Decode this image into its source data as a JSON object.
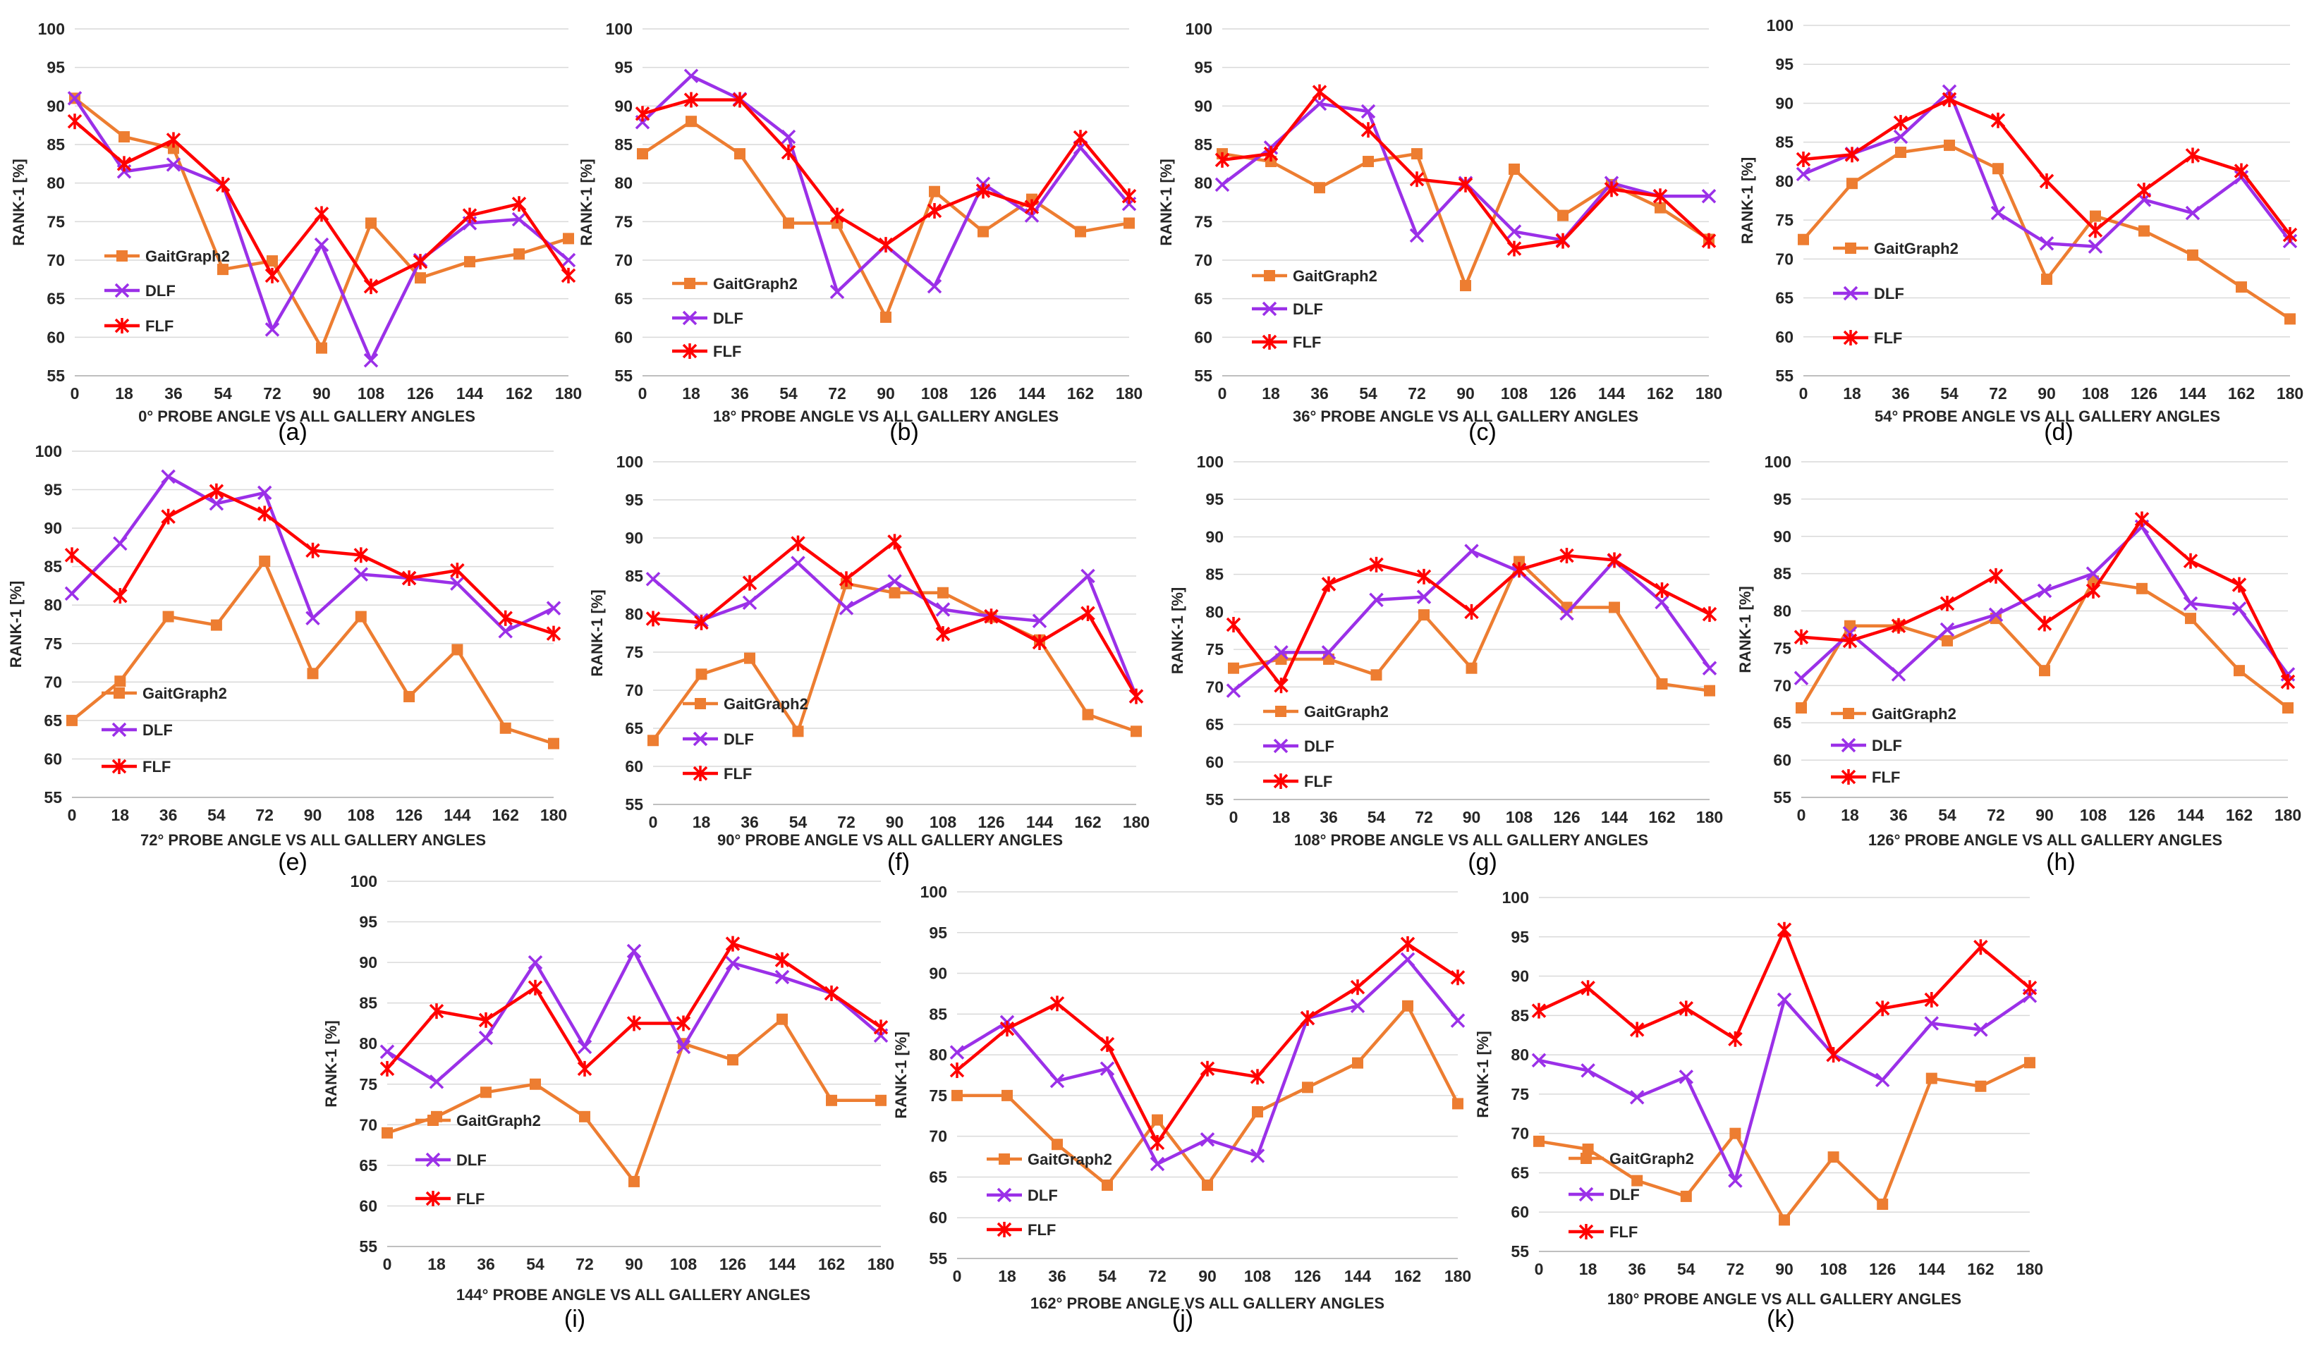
{
  "colors": {
    "GaitGraph2": "#ED7D31",
    "DLF": "#9B30E8",
    "FLF": "#FF0000"
  },
  "chart_data": [
    {
      "type": "line",
      "panel_label": "(a)",
      "title": "",
      "xlabel": "0° PROBE ANGLE VS ALL GALLERY ANGLES",
      "ylabel": "RANK-1 [%]",
      "ylim": [
        55,
        100
      ],
      "yticks": [
        "55",
        "60",
        "65",
        "70",
        "75",
        "80",
        "85",
        "90",
        "95",
        "100"
      ],
      "categories": [
        "0",
        "18",
        "36",
        "54",
        "72",
        "90",
        "108",
        "126",
        "144",
        "162",
        "180"
      ],
      "series": [
        {
          "name": "GaitGraph2",
          "marker": "square",
          "values": [
            91.0,
            86.0,
            84.5,
            68.8,
            69.9,
            58.6,
            74.8,
            67.7,
            69.8,
            70.8,
            72.8
          ]
        },
        {
          "name": "DLF",
          "marker": "x",
          "values": [
            91.0,
            81.5,
            82.4,
            79.8,
            61.0,
            72.0,
            57.0,
            70.0,
            74.8,
            75.3,
            70.0
          ]
        },
        {
          "name": "FLF",
          "marker": "star",
          "values": [
            88.0,
            82.5,
            85.6,
            79.8,
            68.0,
            76.0,
            66.6,
            69.8,
            75.8,
            77.3,
            68.0
          ]
        }
      ]
    },
    {
      "type": "line",
      "panel_label": "(b)",
      "title": "",
      "xlabel": "18° PROBE ANGLE VS ALL GALLERY ANGLES",
      "ylabel": "RANK-1 [%]",
      "ylim": [
        55,
        100
      ],
      "yticks": [
        "55",
        "60",
        "65",
        "70",
        "75",
        "80",
        "85",
        "90",
        "95",
        "100"
      ],
      "categories": [
        "0",
        "18",
        "36",
        "54",
        "72",
        "90",
        "108",
        "126",
        "144",
        "162",
        "180"
      ],
      "series": [
        {
          "name": "GaitGraph2",
          "marker": "square",
          "values": [
            83.8,
            88.0,
            83.8,
            74.8,
            74.8,
            62.6,
            78.9,
            73.7,
            77.9,
            73.7,
            74.8
          ]
        },
        {
          "name": "DLF",
          "marker": "x",
          "values": [
            87.9,
            93.9,
            90.9,
            86.0,
            65.9,
            71.9,
            66.6,
            79.9,
            75.8,
            84.6,
            77.3
          ]
        },
        {
          "name": "FLF",
          "marker": "star",
          "values": [
            89.0,
            90.8,
            90.8,
            84.0,
            75.8,
            72.0,
            76.4,
            79.0,
            76.9,
            85.9,
            78.3
          ]
        }
      ]
    },
    {
      "type": "line",
      "panel_label": "(c)",
      "title": "",
      "xlabel": "36° PROBE ANGLE VS ALL GALLERY ANGLES",
      "ylabel": "RANK-1 [%]",
      "ylim": [
        55,
        100
      ],
      "yticks": [
        "55",
        "60",
        "65",
        "70",
        "75",
        "80",
        "85",
        "90",
        "95",
        "100"
      ],
      "categories": [
        "0",
        "18",
        "36",
        "54",
        "72",
        "90",
        "108",
        "126",
        "144",
        "162",
        "180"
      ],
      "series": [
        {
          "name": "GaitGraph2",
          "marker": "square",
          "values": [
            83.8,
            82.8,
            79.4,
            82.8,
            83.8,
            66.7,
            81.8,
            75.8,
            79.8,
            76.8,
            72.7
          ]
        },
        {
          "name": "DLF",
          "marker": "x",
          "values": [
            79.8,
            84.6,
            90.3,
            89.3,
            73.2,
            80.0,
            73.7,
            72.6,
            80.0,
            78.3,
            78.3
          ]
        },
        {
          "name": "FLF",
          "marker": "star",
          "values": [
            83.0,
            83.8,
            91.8,
            86.9,
            80.5,
            79.8,
            71.5,
            72.5,
            79.2,
            78.3,
            72.5
          ]
        }
      ]
    },
    {
      "type": "line",
      "panel_label": "(d)",
      "title": "",
      "xlabel": "54° PROBE ANGLE VS ALL GALLERY ANGLES",
      "ylabel": "RANK-1 [%]",
      "ylim": [
        55,
        100
      ],
      "yticks": [
        "55",
        "60",
        "65",
        "70",
        "75",
        "80",
        "85",
        "90",
        "95",
        "100"
      ],
      "categories": [
        "0",
        "18",
        "36",
        "54",
        "72",
        "90",
        "108",
        "126",
        "144",
        "162",
        "180"
      ],
      "series": [
        {
          "name": "GaitGraph2",
          "marker": "square",
          "values": [
            72.5,
            79.7,
            83.7,
            84.6,
            81.6,
            67.4,
            75.5,
            73.6,
            70.5,
            66.4,
            62.3
          ]
        },
        {
          "name": "DLF",
          "marker": "x",
          "values": [
            80.9,
            83.5,
            85.7,
            91.5,
            75.9,
            72.0,
            71.6,
            77.6,
            75.9,
            80.5,
            72.3
          ]
        },
        {
          "name": "FLF",
          "marker": "star",
          "values": [
            82.8,
            83.4,
            87.5,
            90.5,
            87.8,
            80.0,
            73.7,
            78.8,
            83.3,
            81.3,
            73.1
          ]
        }
      ]
    },
    {
      "type": "line",
      "panel_label": "(e)",
      "title": "",
      "xlabel": "72° PROBE ANGLE VS ALL GALLERY ANGLES",
      "ylabel": "RANK-1 [%]",
      "ylim": [
        55,
        100
      ],
      "yticks": [
        "55",
        "60",
        "65",
        "70",
        "75",
        "80",
        "85",
        "90",
        "95",
        "100"
      ],
      "categories": [
        "0",
        "18",
        "36",
        "54",
        "72",
        "90",
        "108",
        "126",
        "144",
        "162",
        "180"
      ],
      "series": [
        {
          "name": "GaitGraph2",
          "marker": "square",
          "values": [
            65.0,
            70.1,
            78.5,
            77.4,
            85.7,
            71.1,
            78.5,
            68.1,
            74.2,
            64.0,
            62.0
          ]
        },
        {
          "name": "DLF",
          "marker": "x",
          "values": [
            81.5,
            88.0,
            96.7,
            93.2,
            94.6,
            78.3,
            84.0,
            83.5,
            82.8,
            76.6,
            79.6
          ]
        },
        {
          "name": "FLF",
          "marker": "star",
          "values": [
            86.5,
            81.2,
            91.5,
            94.8,
            91.9,
            87.1,
            86.5,
            83.5,
            84.5,
            78.3,
            76.3
          ]
        }
      ]
    },
    {
      "type": "line",
      "panel_label": "(f)",
      "title": "",
      "xlabel": "90° PROBE ANGLE VS ALL GALLERY ANGLES",
      "ylabel": "RANK-1 [%]",
      "ylim": [
        55,
        100
      ],
      "yticks": [
        "55",
        "60",
        "65",
        "70",
        "75",
        "80",
        "85",
        "90",
        "95",
        "100"
      ],
      "categories": [
        "0",
        "18",
        "36",
        "54",
        "72",
        "90",
        "108",
        "126",
        "144",
        "162",
        "180"
      ],
      "series": [
        {
          "name": "GaitGraph2",
          "marker": "square",
          "values": [
            63.4,
            72.1,
            74.2,
            64.6,
            84.0,
            82.8,
            82.8,
            79.6,
            76.6,
            66.8,
            64.6
          ]
        },
        {
          "name": "DLF",
          "marker": "x",
          "values": [
            84.6,
            79.2,
            81.5,
            86.7,
            80.8,
            84.3,
            80.6,
            79.7,
            79.1,
            85.0,
            69.2
          ]
        },
        {
          "name": "FLF",
          "marker": "star",
          "values": [
            79.4,
            78.9,
            84.1,
            89.3,
            84.6,
            89.5,
            77.4,
            79.7,
            76.3,
            80.1,
            69.2
          ]
        }
      ]
    },
    {
      "type": "line",
      "panel_label": "(g)",
      "title": "",
      "xlabel": "108° PROBE ANGLE VS ALL GALLERY ANGLES",
      "ylabel": "RANK-1 [%]",
      "ylim": [
        55,
        100
      ],
      "yticks": [
        "55",
        "60",
        "65",
        "70",
        "75",
        "80",
        "85",
        "90",
        "95",
        "100"
      ],
      "categories": [
        "0",
        "18",
        "36",
        "54",
        "72",
        "90",
        "108",
        "126",
        "144",
        "162",
        "180"
      ],
      "series": [
        {
          "name": "GaitGraph2",
          "marker": "square",
          "values": [
            72.5,
            73.7,
            73.7,
            71.6,
            79.6,
            72.5,
            86.7,
            80.6,
            80.6,
            70.4,
            69.5
          ]
        },
        {
          "name": "DLF",
          "marker": "x",
          "values": [
            69.5,
            74.6,
            74.6,
            81.6,
            82.0,
            88.1,
            85.4,
            79.8,
            86.8,
            81.3,
            72.5
          ]
        },
        {
          "name": "FLF",
          "marker": "star",
          "values": [
            78.3,
            70.2,
            83.7,
            86.3,
            84.7,
            80.0,
            85.6,
            87.5,
            86.9,
            82.9,
            79.7
          ]
        }
      ]
    },
    {
      "type": "line",
      "panel_label": "(h)",
      "title": "",
      "xlabel": "126° PROBE ANGLE VS ALL GALLERY ANGLES",
      "ylabel": "RANK-1 [%]",
      "ylim": [
        55,
        100
      ],
      "yticks": [
        "55",
        "60",
        "65",
        "70",
        "75",
        "80",
        "85",
        "90",
        "95",
        "100"
      ],
      "categories": [
        "0",
        "18",
        "36",
        "54",
        "72",
        "90",
        "108",
        "126",
        "144",
        "162",
        "180"
      ],
      "series": [
        {
          "name": "GaitGraph2",
          "marker": "square",
          "values": [
            67.0,
            78.0,
            78.0,
            76.0,
            79.0,
            72.0,
            84.0,
            83.0,
            79.0,
            72.0,
            67.0
          ]
        },
        {
          "name": "DLF",
          "marker": "x",
          "values": [
            71.0,
            77.0,
            71.5,
            77.5,
            79.5,
            82.7,
            85.0,
            91.3,
            81.0,
            80.3,
            71.5
          ]
        },
        {
          "name": "FLF",
          "marker": "star",
          "values": [
            76.5,
            76.0,
            78.0,
            81.0,
            84.7,
            78.3,
            82.7,
            92.3,
            86.7,
            83.5,
            70.5
          ]
        }
      ]
    },
    {
      "type": "line",
      "panel_label": "(i)",
      "title": "",
      "xlabel": "144° PROBE ANGLE VS ALL GALLERY ANGLES",
      "ylabel": "RANK-1 [%]",
      "ylim": [
        55,
        100
      ],
      "yticks": [
        "55",
        "60",
        "65",
        "70",
        "75",
        "80",
        "85",
        "90",
        "95",
        "100"
      ],
      "categories": [
        "0",
        "18",
        "36",
        "54",
        "72",
        "90",
        "108",
        "126",
        "144",
        "162",
        "180"
      ],
      "series": [
        {
          "name": "GaitGraph2",
          "marker": "square",
          "values": [
            69.0,
            71.0,
            74.0,
            75.0,
            71.0,
            63.0,
            80.0,
            78.0,
            83.0,
            73.0,
            73.0
          ]
        },
        {
          "name": "DLF",
          "marker": "x",
          "values": [
            79.0,
            75.3,
            80.7,
            90.0,
            79.6,
            91.4,
            79.6,
            89.9,
            88.2,
            86.2,
            81.0
          ]
        },
        {
          "name": "FLF",
          "marker": "star",
          "values": [
            76.9,
            84.0,
            82.9,
            86.9,
            76.9,
            82.5,
            82.5,
            92.3,
            90.3,
            86.2,
            82.0
          ]
        }
      ]
    },
    {
      "type": "line",
      "panel_label": "(j)",
      "title": "",
      "xlabel": "162° PROBE ANGLE VS ALL GALLERY ANGLES",
      "ylabel": "RANK-1 [%]",
      "ylim": [
        55,
        100
      ],
      "yticks": [
        "55",
        "60",
        "65",
        "70",
        "75",
        "80",
        "85",
        "90",
        "95",
        "100"
      ],
      "categories": [
        "0",
        "18",
        "36",
        "54",
        "72",
        "90",
        "108",
        "126",
        "144",
        "162",
        "180"
      ],
      "series": [
        {
          "name": "GaitGraph2",
          "marker": "square",
          "values": [
            75.0,
            75.0,
            69.0,
            64.0,
            72.0,
            64.0,
            73.0,
            76.0,
            79.0,
            86.0,
            74.0
          ]
        },
        {
          "name": "DLF",
          "marker": "x",
          "values": [
            80.3,
            84.0,
            76.8,
            78.3,
            66.6,
            69.6,
            67.6,
            84.5,
            86.0,
            91.7,
            84.2
          ]
        },
        {
          "name": "FLF",
          "marker": "star",
          "values": [
            78.1,
            83.2,
            86.3,
            81.3,
            69.2,
            78.3,
            77.3,
            84.5,
            88.3,
            93.6,
            89.5
          ]
        }
      ]
    },
    {
      "type": "line",
      "panel_label": "(k)",
      "title": "",
      "xlabel": "180° PROBE ANGLE VS ALL GALLERY ANGLES",
      "ylabel": "RANK-1 [%]",
      "ylim": [
        55,
        100
      ],
      "yticks": [
        "55",
        "60",
        "65",
        "70",
        "75",
        "80",
        "85",
        "90",
        "95",
        "100"
      ],
      "categories": [
        "0",
        "18",
        "36",
        "54",
        "72",
        "90",
        "108",
        "126",
        "144",
        "162",
        "180"
      ],
      "series": [
        {
          "name": "GaitGraph2",
          "marker": "square",
          "values": [
            69.0,
            68.0,
            64.0,
            62.0,
            70.0,
            59.0,
            67.0,
            61.0,
            77.0,
            76.0,
            79.0
          ]
        },
        {
          "name": "DLF",
          "marker": "x",
          "values": [
            79.3,
            78.0,
            74.6,
            77.2,
            64.0,
            87.0,
            80.0,
            76.8,
            84.0,
            83.2,
            87.5
          ]
        },
        {
          "name": "FLF",
          "marker": "star",
          "values": [
            85.6,
            88.5,
            83.2,
            85.9,
            82.0,
            95.9,
            80.0,
            85.9,
            87.0,
            93.7,
            88.5
          ]
        }
      ]
    }
  ]
}
